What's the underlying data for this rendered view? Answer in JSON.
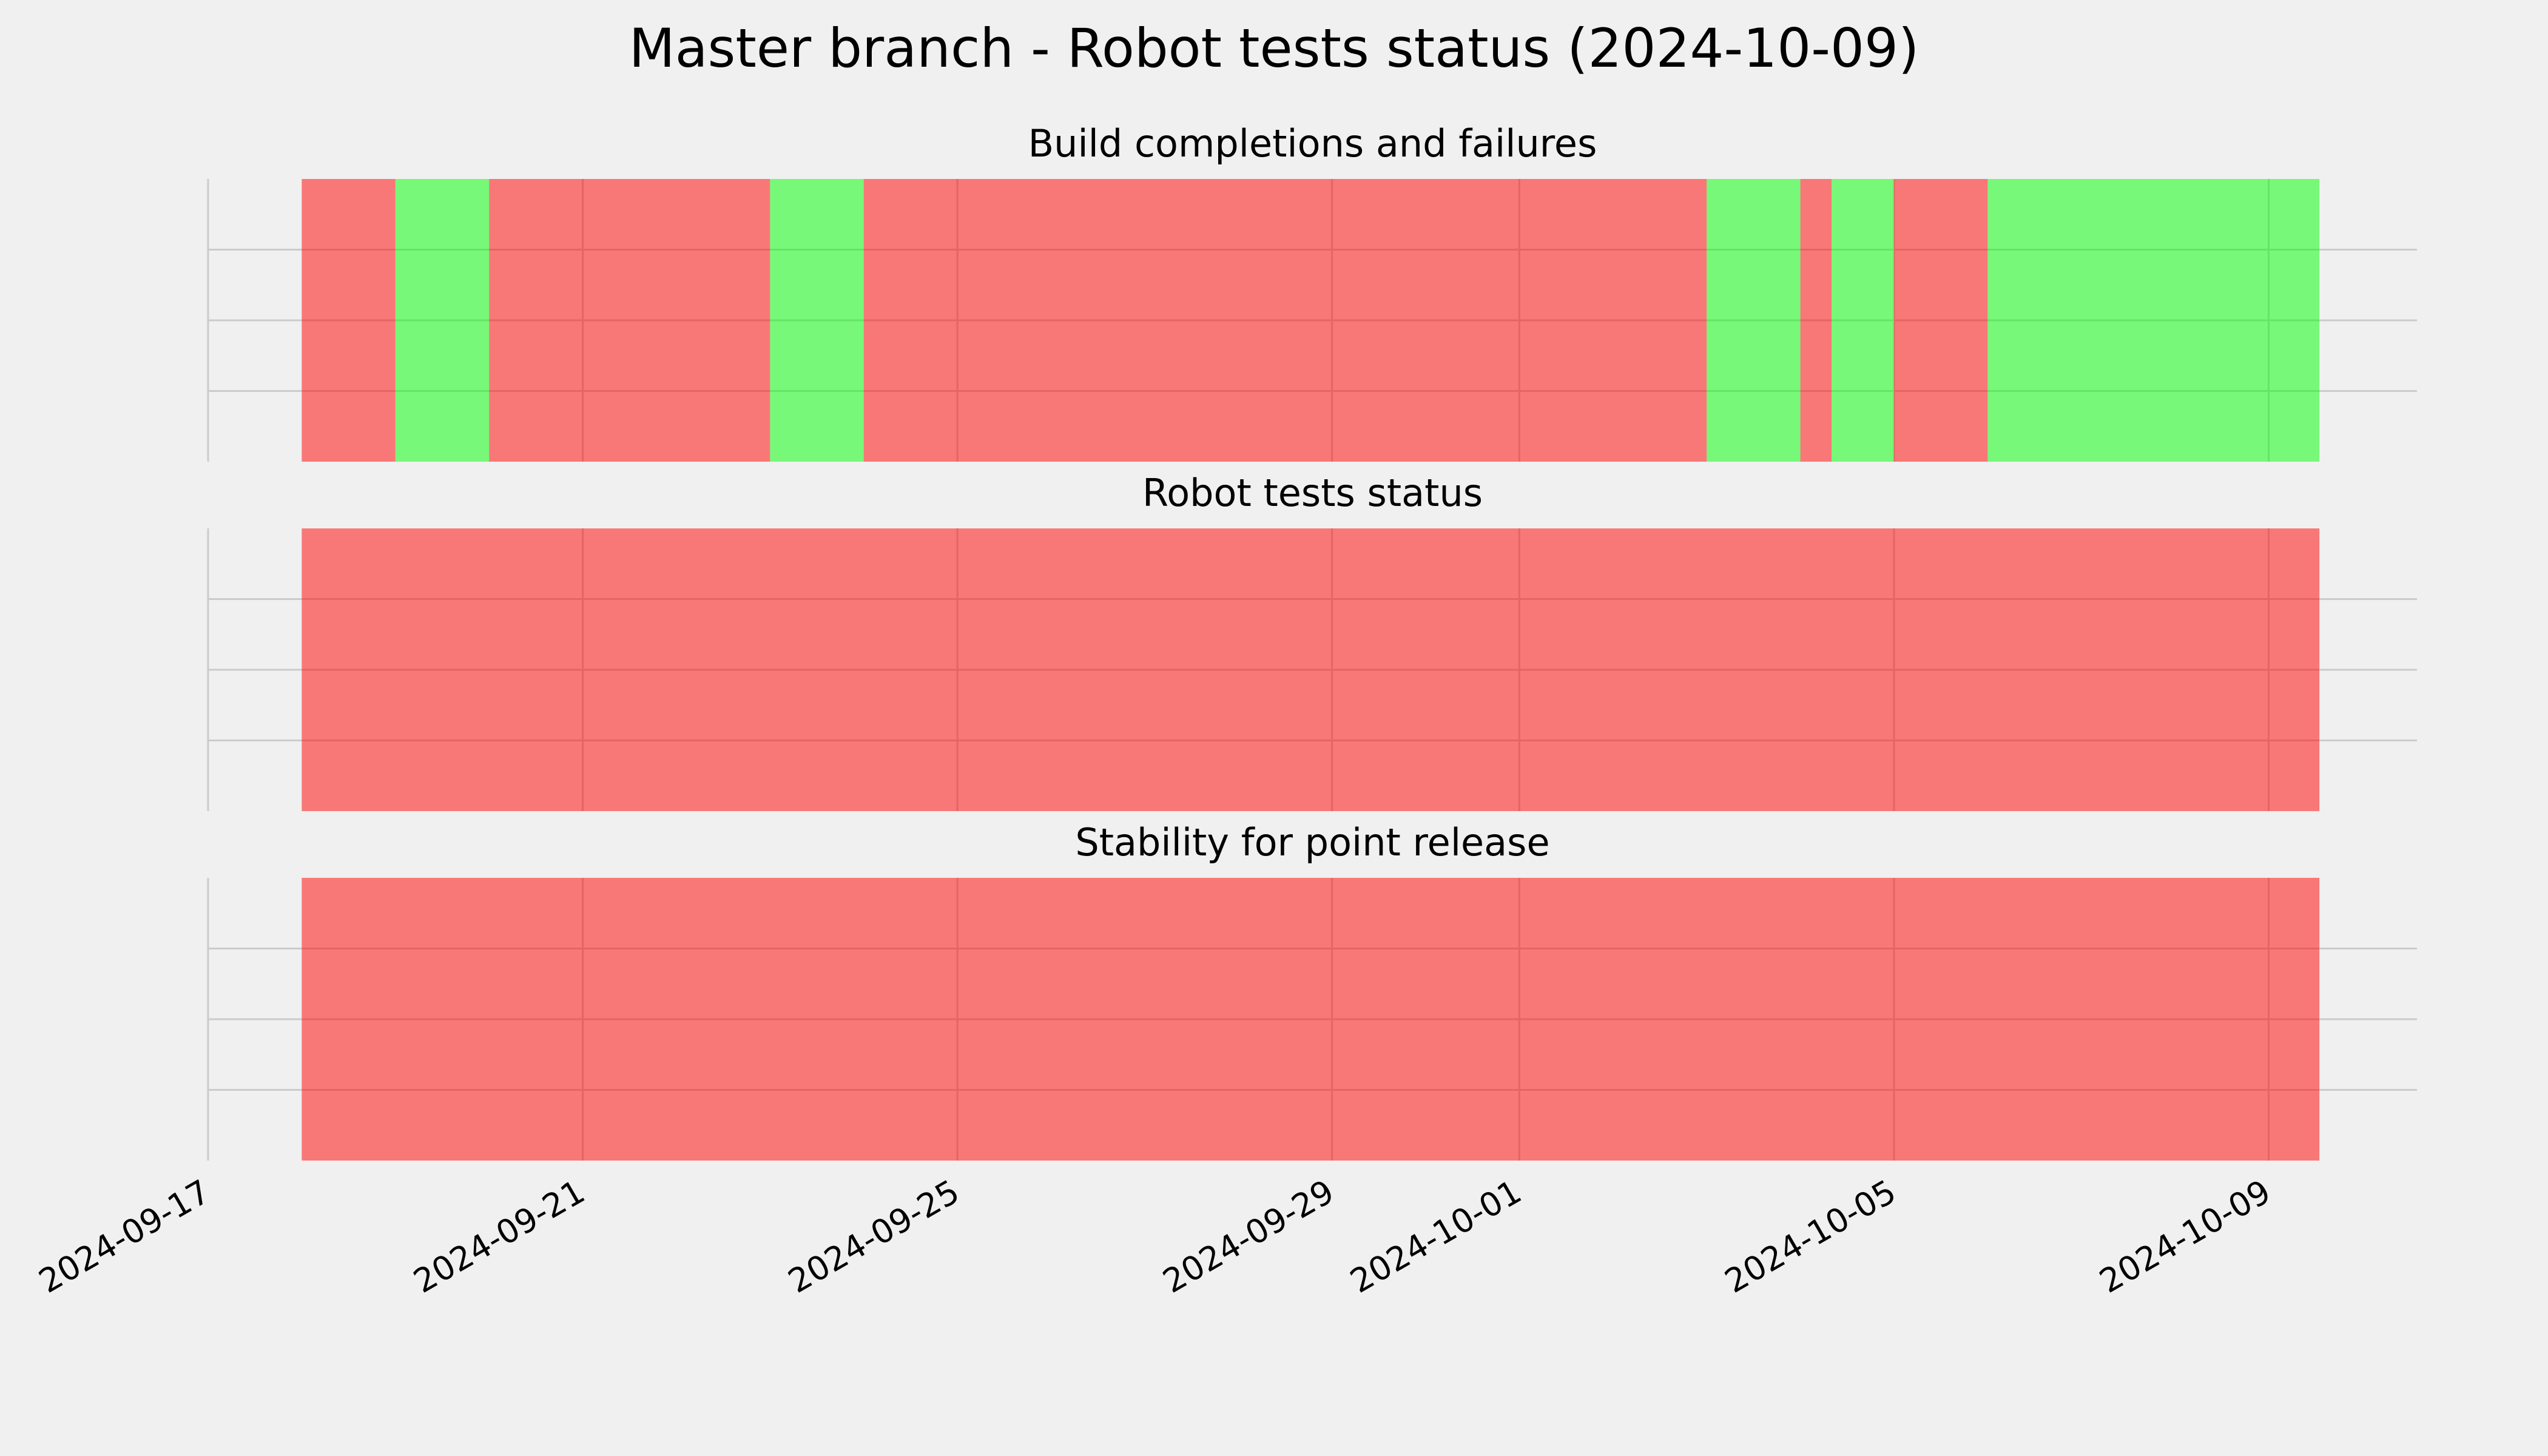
{
  "title": "Master branch - Robot tests status (2024-10-09)",
  "chart_data": [
    {
      "type": "timeline",
      "title": "Build completions and failures",
      "bins": [
        "2024-09-18",
        "2024-09-19",
        "2024-09-20",
        "2024-09-23",
        "2024-09-24",
        "2024-10-03",
        "2024-10-04",
        "2024-10-04T08:00",
        "2024-10-05",
        "2024-10-06",
        "2024-10-09T13:00"
      ],
      "colors": [
        "#ff0000",
        "#00ff00",
        "#ff0000",
        "#00ff00",
        "#ff0000",
        "#00ff00",
        "#ff0000",
        "#00ff00",
        "#ff0000",
        "#00ff00"
      ],
      "alpha": 0.5,
      "xlim": [
        "2024-09-17",
        "2024-10-10T14:00"
      ],
      "xticks": [
        "2024-09-17",
        "2024-09-21",
        "2024-09-25",
        "2024-09-29",
        "2024-10-01",
        "2024-10-05",
        "2024-10-09"
      ],
      "ylim": [
        0,
        1
      ],
      "yticks": [
        0.25,
        0.5,
        0.75
      ],
      "grid": true
    },
    {
      "type": "timeline",
      "title": "Robot tests status",
      "bins": [
        "2024-09-18",
        "2024-10-09T13:00"
      ],
      "colors": [
        "#ff0000"
      ],
      "alpha": 0.5,
      "xlim": [
        "2024-09-17",
        "2024-10-10T14:00"
      ],
      "xticks": [
        "2024-09-17",
        "2024-09-21",
        "2024-09-25",
        "2024-09-29",
        "2024-10-01",
        "2024-10-05",
        "2024-10-09"
      ],
      "ylim": [
        0,
        1
      ],
      "yticks": [
        0.25,
        0.5,
        0.75
      ],
      "grid": true
    },
    {
      "type": "timeline",
      "title": "Stability for point release",
      "bins": [
        "2024-09-18",
        "2024-10-09T13:00"
      ],
      "colors": [
        "#ff0000"
      ],
      "alpha": 0.5,
      "xlim": [
        "2024-09-17",
        "2024-10-10T14:00"
      ],
      "xticks": [
        "2024-09-17",
        "2024-09-21",
        "2024-09-25",
        "2024-09-29",
        "2024-10-01",
        "2024-10-05",
        "2024-10-09"
      ],
      "ylim": [
        0,
        1
      ],
      "yticks": [
        0.25,
        0.5,
        0.75
      ],
      "grid": true
    }
  ]
}
